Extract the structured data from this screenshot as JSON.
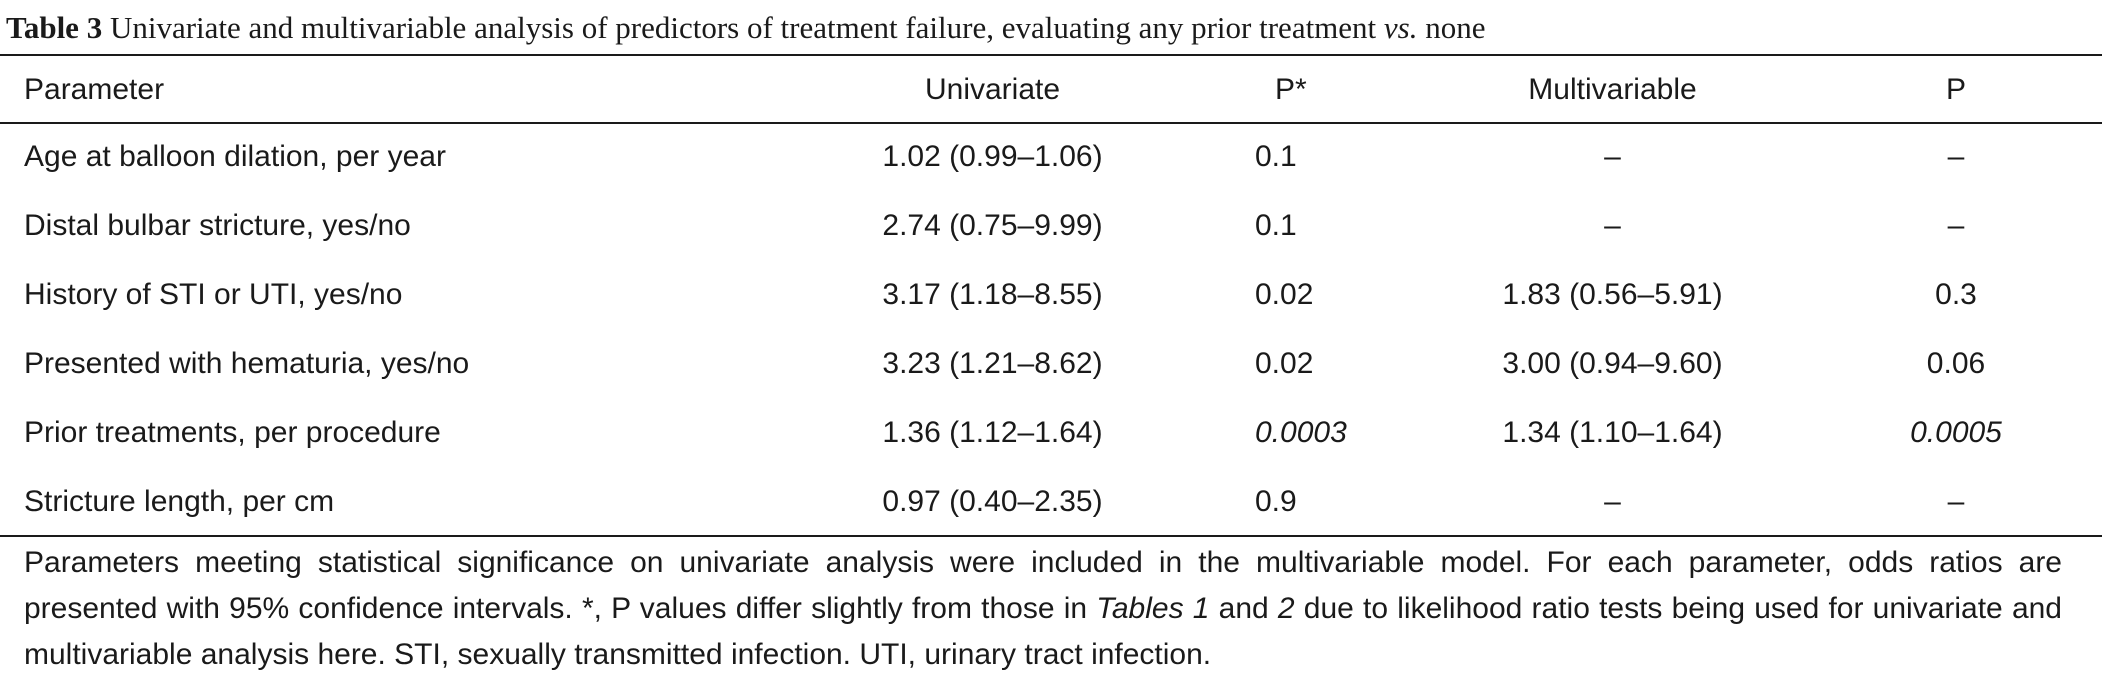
{
  "caption": {
    "label": "Table 3",
    "text_before": " Univariate and multivariable analysis of predictors of treatment failure, evaluating any prior treatment ",
    "italic": "vs.",
    "text_after": " none"
  },
  "table": {
    "headers": {
      "parameter": "Parameter",
      "univariate": "Univariate",
      "p_star": "P*",
      "multivariable": "Multivariable",
      "p": "P"
    },
    "rows": [
      {
        "parameter": "Age at balloon dilation, per year",
        "univariate": "1.02 (0.99–1.06)",
        "p_star": "0.1",
        "multivariable": "–",
        "p": "–"
      },
      {
        "parameter": "Distal bulbar stricture, yes/no",
        "univariate": "2.74 (0.75–9.99)",
        "p_star": "0.1",
        "multivariable": "–",
        "p": "–"
      },
      {
        "parameter": "History of STI or UTI, yes/no",
        "univariate": "3.17 (1.18–8.55)",
        "p_star": "0.02",
        "multivariable": "1.83 (0.56–5.91)",
        "p": "0.3"
      },
      {
        "parameter": "Presented with hematuria, yes/no",
        "univariate": "3.23 (1.21–8.62)",
        "p_star": "0.02",
        "multivariable": "3.00 (0.94–9.60)",
        "p": "0.06"
      },
      {
        "parameter": "Prior treatments, per procedure",
        "univariate": "1.36 (1.12–1.64)",
        "p_star": "0.0003",
        "multivariable": "1.34 (1.10–1.64)",
        "p": "0.0005"
      },
      {
        "parameter": "Stricture length, per cm",
        "univariate": "0.97 (0.40–2.35)",
        "p_star": "0.9",
        "multivariable": "–",
        "p": "–"
      }
    ]
  },
  "footnote": {
    "part1": "Parameters meeting statistical significance on univariate analysis were included in the multivariable model. For each parameter, odds ratios are presented with 95% confidence intervals. *, P values differ slightly from those in ",
    "tables1": "Tables 1",
    "and": " and ",
    "tables2": "2",
    "part2": " due to likelihood ratio tests being used for univariate and multivariable analysis here. STI, sexually transmitted infection. UTI, urinary tract infection."
  }
}
